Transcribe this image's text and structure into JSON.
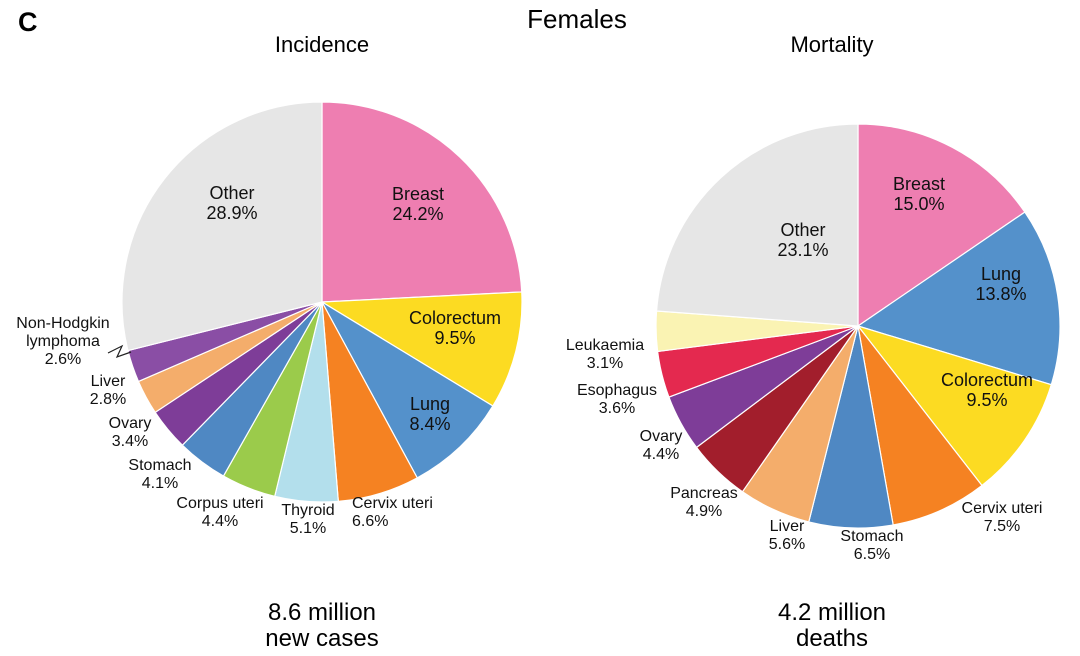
{
  "panel_letter": "C",
  "figure_title": "Females",
  "chart_data": [
    {
      "type": "pie",
      "title": "Incidence",
      "unit": "%",
      "footer_line1": "8.6 million",
      "footer_line2": "new cases",
      "slices": [
        {
          "label": "Breast",
          "value": 24.2,
          "value_text": "24.2%",
          "color": "#EE7EB1"
        },
        {
          "label": "Colorectum",
          "value": 9.5,
          "value_text": "9.5%",
          "color": "#FCDB22"
        },
        {
          "label": "Lung",
          "value": 8.4,
          "value_text": "8.4%",
          "color": "#5491CB"
        },
        {
          "label": "Cervix uteri",
          "value": 6.6,
          "value_text": "6.6%",
          "color": "#F58222"
        },
        {
          "label": "Thyroid",
          "value": 5.1,
          "value_text": "5.1%",
          "color": "#B3DFEC"
        },
        {
          "label": "Corpus uteri",
          "value": 4.4,
          "value_text": "4.4%",
          "color": "#9BCB4B"
        },
        {
          "label": "Stomach",
          "value": 4.1,
          "value_text": "4.1%",
          "color": "#4F88C3"
        },
        {
          "label": "Ovary",
          "value": 3.4,
          "value_text": "3.4%",
          "color": "#7E3D98"
        },
        {
          "label": "Liver",
          "value": 2.8,
          "value_text": "2.8%",
          "color": "#F4AD6B"
        },
        {
          "label": "Non-Hodgkin lymphoma",
          "value": 2.6,
          "value_text": "2.6%",
          "color": "#8A4EA5"
        },
        {
          "label": "Other",
          "value": 28.9,
          "value_text": "28.9%",
          "color": "#E6E6E6"
        }
      ]
    },
    {
      "type": "pie",
      "title": "Mortality",
      "unit": "%",
      "footer_line1": "4.2 million",
      "footer_line2": "deaths",
      "slices": [
        {
          "label": "Breast",
          "value": 15.0,
          "value_text": "15.0%",
          "color": "#EE7EB1"
        },
        {
          "label": "Lung",
          "value": 13.8,
          "value_text": "13.8%",
          "color": "#5491CB"
        },
        {
          "label": "Colorectum",
          "value": 9.5,
          "value_text": "9.5%",
          "color": "#FCDB22"
        },
        {
          "label": "Cervix uteri",
          "value": 7.5,
          "value_text": "7.5%",
          "color": "#F58222"
        },
        {
          "label": "Stomach",
          "value": 6.5,
          "value_text": "6.5%",
          "color": "#4F88C3"
        },
        {
          "label": "Liver",
          "value": 5.6,
          "value_text": "5.6%",
          "color": "#F4AD6B"
        },
        {
          "label": "Pancreas",
          "value": 4.9,
          "value_text": "4.9%",
          "color": "#A21E2C"
        },
        {
          "label": "Ovary",
          "value": 4.4,
          "value_text": "4.4%",
          "color": "#7E3D98"
        },
        {
          "label": "Esophagus",
          "value": 3.6,
          "value_text": "3.6%",
          "color": "#E4294F"
        },
        {
          "label": "Leukaemia",
          "value": 3.1,
          "value_text": "3.1%",
          "color": "#FAF3B3"
        },
        {
          "label": "Other",
          "value": 23.1,
          "value_text": "23.1%",
          "color": "#E6E6E6"
        }
      ]
    }
  ]
}
